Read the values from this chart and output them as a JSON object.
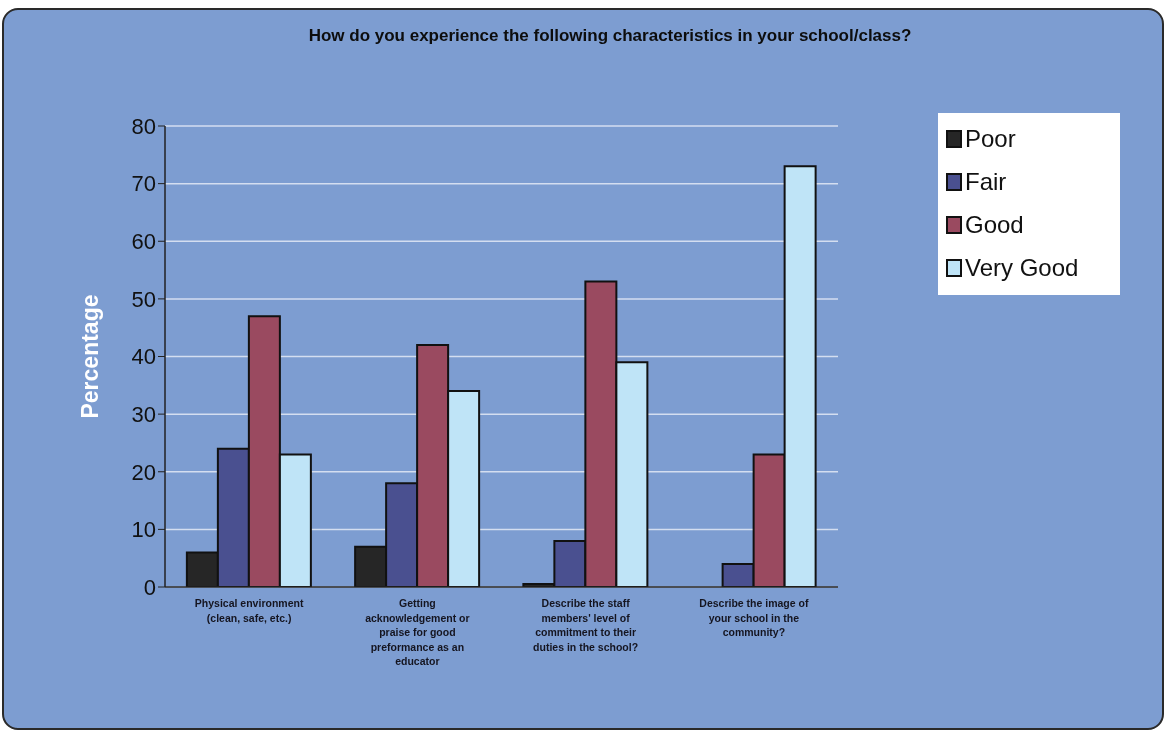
{
  "chart_data": {
    "type": "bar",
    "title": "How do you experience the following characteristics in your school/class?",
    "ylabel": "Percentage",
    "categories": [
      "Physical environment (clean, safe, etc.)",
      "Getting acknowledgement or praise for good preformance as an educator",
      "Describe the staff members' level of commitment to their duties in the school?",
      "Describe the image of your school in the community?"
    ],
    "series": [
      {
        "name": "Poor",
        "color": "#262626",
        "values": [
          6,
          7,
          0.5,
          0
        ]
      },
      {
        "name": "Fair",
        "color": "#4a5090",
        "values": [
          24,
          18,
          8,
          4
        ]
      },
      {
        "name": "Good",
        "color": "#9a4a60",
        "values": [
          47,
          42,
          53,
          23
        ]
      },
      {
        "name": "Very Good",
        "color": "#bfe4f7",
        "values": [
          23,
          34,
          39,
          73
        ]
      }
    ],
    "ylim": [
      0,
      80
    ],
    "yticks": [
      0,
      10,
      20,
      30,
      40,
      50,
      60,
      70,
      80
    ],
    "grid": "y",
    "legend": "top right"
  }
}
